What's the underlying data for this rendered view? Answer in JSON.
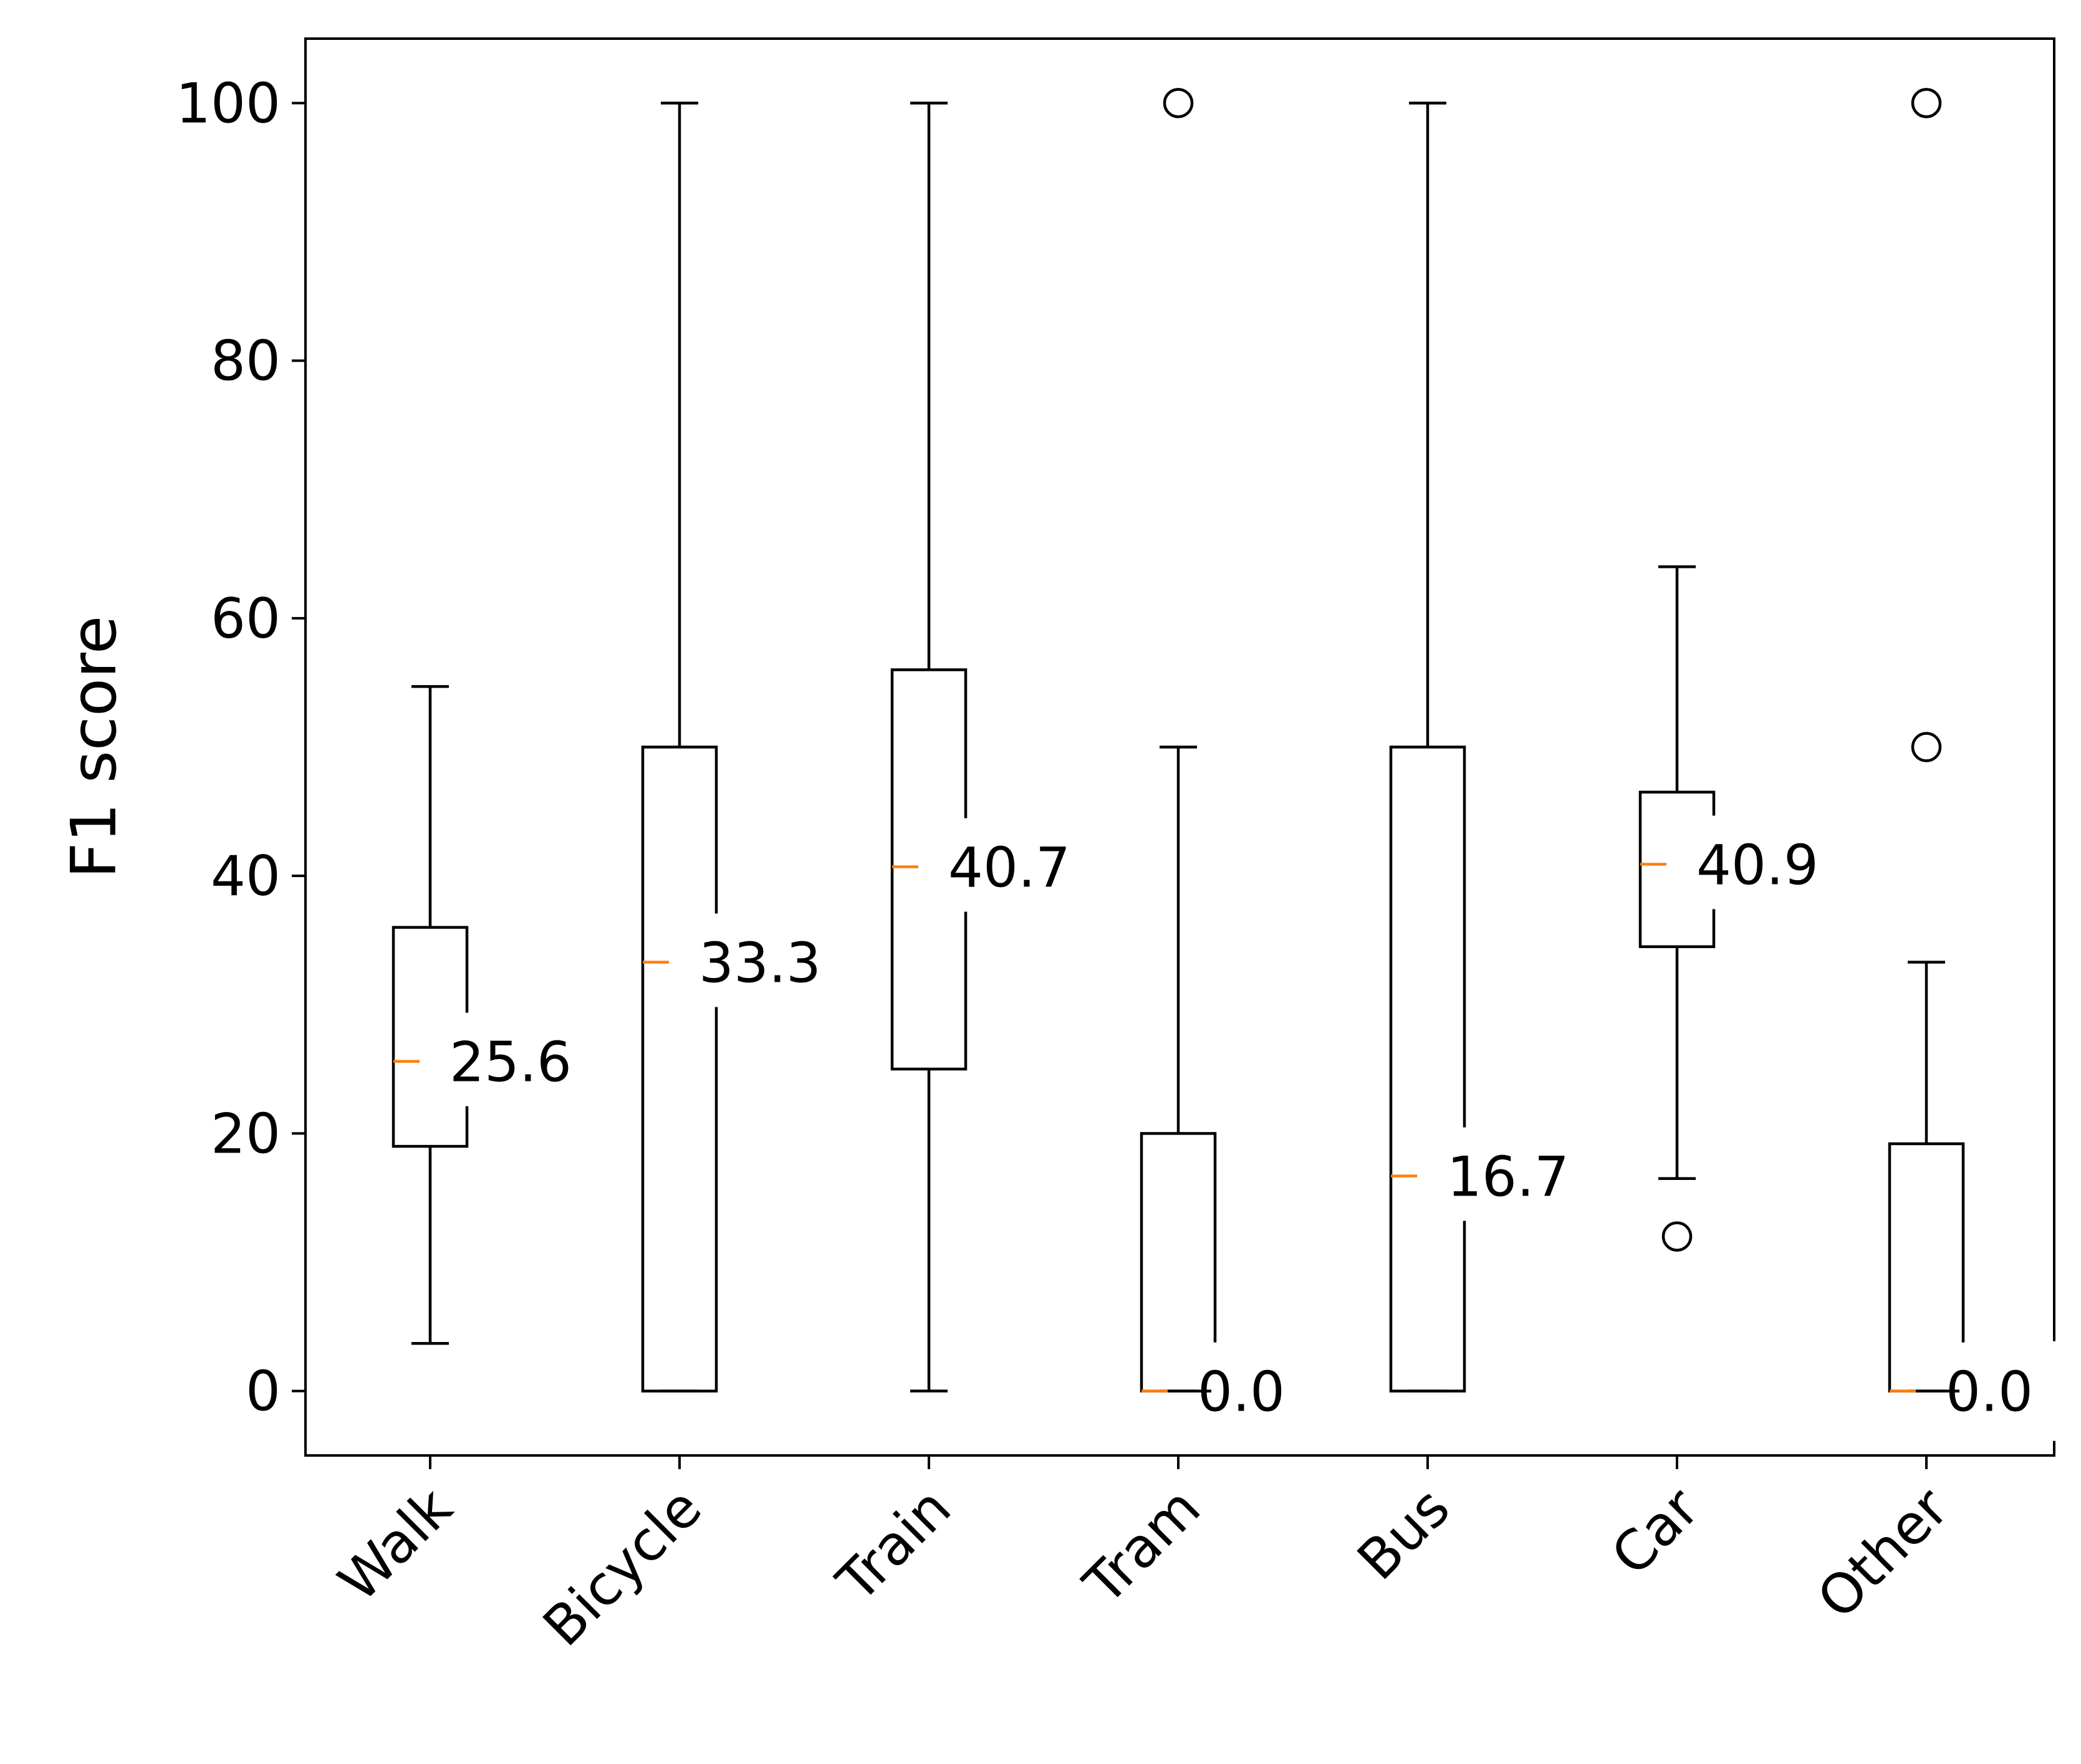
{
  "chart_data": {
    "type": "box",
    "title": "",
    "xlabel": "",
    "ylabel": "F1 score",
    "ylim": [
      -5,
      105
    ],
    "yticks": [
      0,
      20,
      40,
      60,
      80,
      100
    ],
    "grid": false,
    "categories": [
      "Walk",
      "Bicycle",
      "Train",
      "Tram",
      "Bus",
      "Car",
      "Other"
    ],
    "boxes": [
      {
        "category": "Walk",
        "whisker_low": 3.7,
        "q1": 19.0,
        "median": 25.6,
        "q3": 36.0,
        "whisker_high": 54.7,
        "fliers": [],
        "median_label": "25.6"
      },
      {
        "category": "Bicycle",
        "whisker_low": 0.0,
        "q1": 0.0,
        "median": 33.3,
        "q3": 50.0,
        "whisker_high": 100.0,
        "fliers": [],
        "median_label": "33.3"
      },
      {
        "category": "Train",
        "whisker_low": 0.0,
        "q1": 25.0,
        "median": 40.7,
        "q3": 56.0,
        "whisker_high": 100.0,
        "fliers": [],
        "median_label": "40.7"
      },
      {
        "category": "Tram",
        "whisker_low": 0.0,
        "q1": 0.0,
        "median": 0.0,
        "q3": 20.0,
        "whisker_high": 50.0,
        "fliers": [
          100.0
        ],
        "median_label": "0.0"
      },
      {
        "category": "Bus",
        "whisker_low": 0.0,
        "q1": 0.0,
        "median": 16.7,
        "q3": 50.0,
        "whisker_high": 100.0,
        "fliers": [],
        "median_label": "16.7"
      },
      {
        "category": "Car",
        "whisker_low": 16.5,
        "q1": 34.5,
        "median": 40.9,
        "q3": 46.5,
        "whisker_high": 64.0,
        "fliers": [
          12.0
        ],
        "median_label": "40.9"
      },
      {
        "category": "Other",
        "whisker_low": 0.0,
        "q1": 0.0,
        "median": 0.0,
        "q3": 19.2,
        "whisker_high": 33.3,
        "fliers": [
          50.0,
          100.0
        ],
        "median_label": "0.0"
      }
    ],
    "colors": {
      "box": "#000000",
      "median": "#ff7f0e"
    }
  }
}
